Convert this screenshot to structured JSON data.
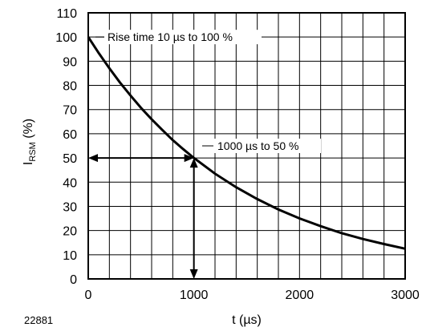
{
  "figure_id": "22881",
  "chart_data": {
    "type": "line",
    "xlabel": "t (µs)",
    "ylabel_main": "I",
    "ylabel_sub": "RSM",
    "ylabel_unit": " (%)",
    "xlim": [
      0,
      3000
    ],
    "ylim": [
      0,
      110
    ],
    "x_ticks": [
      0,
      1000,
      2000,
      3000
    ],
    "x_tick_labels": [
      "0",
      "1000",
      "2000",
      "3000"
    ],
    "y_ticks": [
      0,
      10,
      20,
      30,
      40,
      50,
      60,
      70,
      80,
      90,
      100,
      110
    ],
    "y_tick_labels": [
      "0",
      "10",
      "20",
      "30",
      "40",
      "50",
      "60",
      "70",
      "80",
      "90",
      "100",
      "110"
    ],
    "x_grid_step": 200,
    "y_grid_step": 10,
    "grid": true,
    "series": [
      {
        "x": [
          0,
          100,
          200,
          300,
          400,
          500,
          600,
          700,
          800,
          900,
          1000,
          1200,
          1400,
          1600,
          1800,
          2000,
          2200,
          2400,
          2600,
          2800,
          3000
        ],
        "y": [
          100,
          93.3,
          87.1,
          81.2,
          75.8,
          70.7,
          66.0,
          61.6,
          57.4,
          53.6,
          50.0,
          43.5,
          37.9,
          33.0,
          28.7,
          25.0,
          21.8,
          18.9,
          16.5,
          14.4,
          12.5
        ]
      }
    ],
    "annotations": [
      {
        "text": "Rise time 10 µs to 100 %",
        "x": 0,
        "y": 100
      },
      {
        "text": "1000 µs to 50 %",
        "x": 1000,
        "y": 50
      }
    ],
    "markers": {
      "x": 1000,
      "y": 50
    }
  }
}
